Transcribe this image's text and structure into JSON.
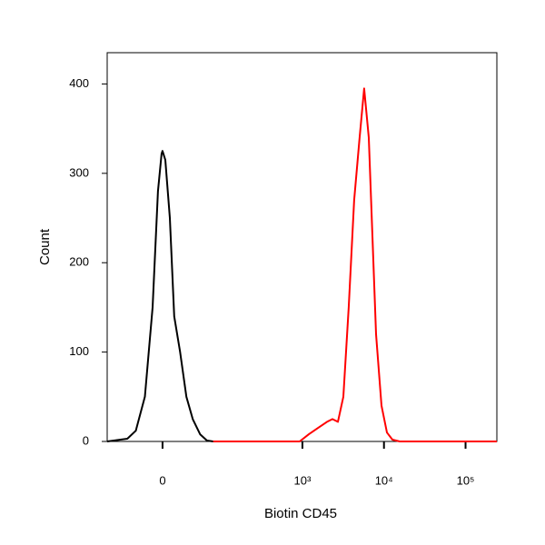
{
  "chart_data": {
    "type": "line",
    "xlabel": "Biotin CD45",
    "ylabel": "Count",
    "xscale": "biexponential",
    "xlim": [
      -88,
      242000
    ],
    "ylim": [
      0,
      435
    ],
    "xticks": [
      0,
      {
        "value": 1000,
        "label": "10³"
      },
      {
        "value": 10000,
        "label": "10⁴"
      },
      {
        "value": 100000,
        "label": "10⁵"
      }
    ],
    "yticks": [
      0,
      100,
      200,
      300,
      400
    ],
    "series": [
      {
        "color": "#000000",
        "x": [
          -88,
          -45,
          -32,
          -20,
          -11,
          -5,
          -1,
          0,
          3,
          8,
          13,
          20,
          28,
          37,
          49,
          62,
          76
        ],
        "values": [
          0,
          3,
          12,
          50,
          150,
          280,
          322,
          325,
          315,
          250,
          140,
          100,
          50,
          25,
          8,
          1,
          0
        ]
      },
      {
        "color": "#ff0000",
        "x": [
          76,
          926,
          1198,
          1548,
          2001,
          2333,
          2721,
          3175,
          3700,
          4315,
          5033,
          5722,
          6508,
          7210,
          7992,
          9320,
          10872,
          12674,
          15556,
          242000
        ],
        "values": [
          0,
          0,
          8,
          15,
          22,
          25,
          22,
          50,
          150,
          270,
          340,
          395,
          340,
          230,
          120,
          40,
          10,
          2,
          0,
          0
        ]
      }
    ]
  }
}
